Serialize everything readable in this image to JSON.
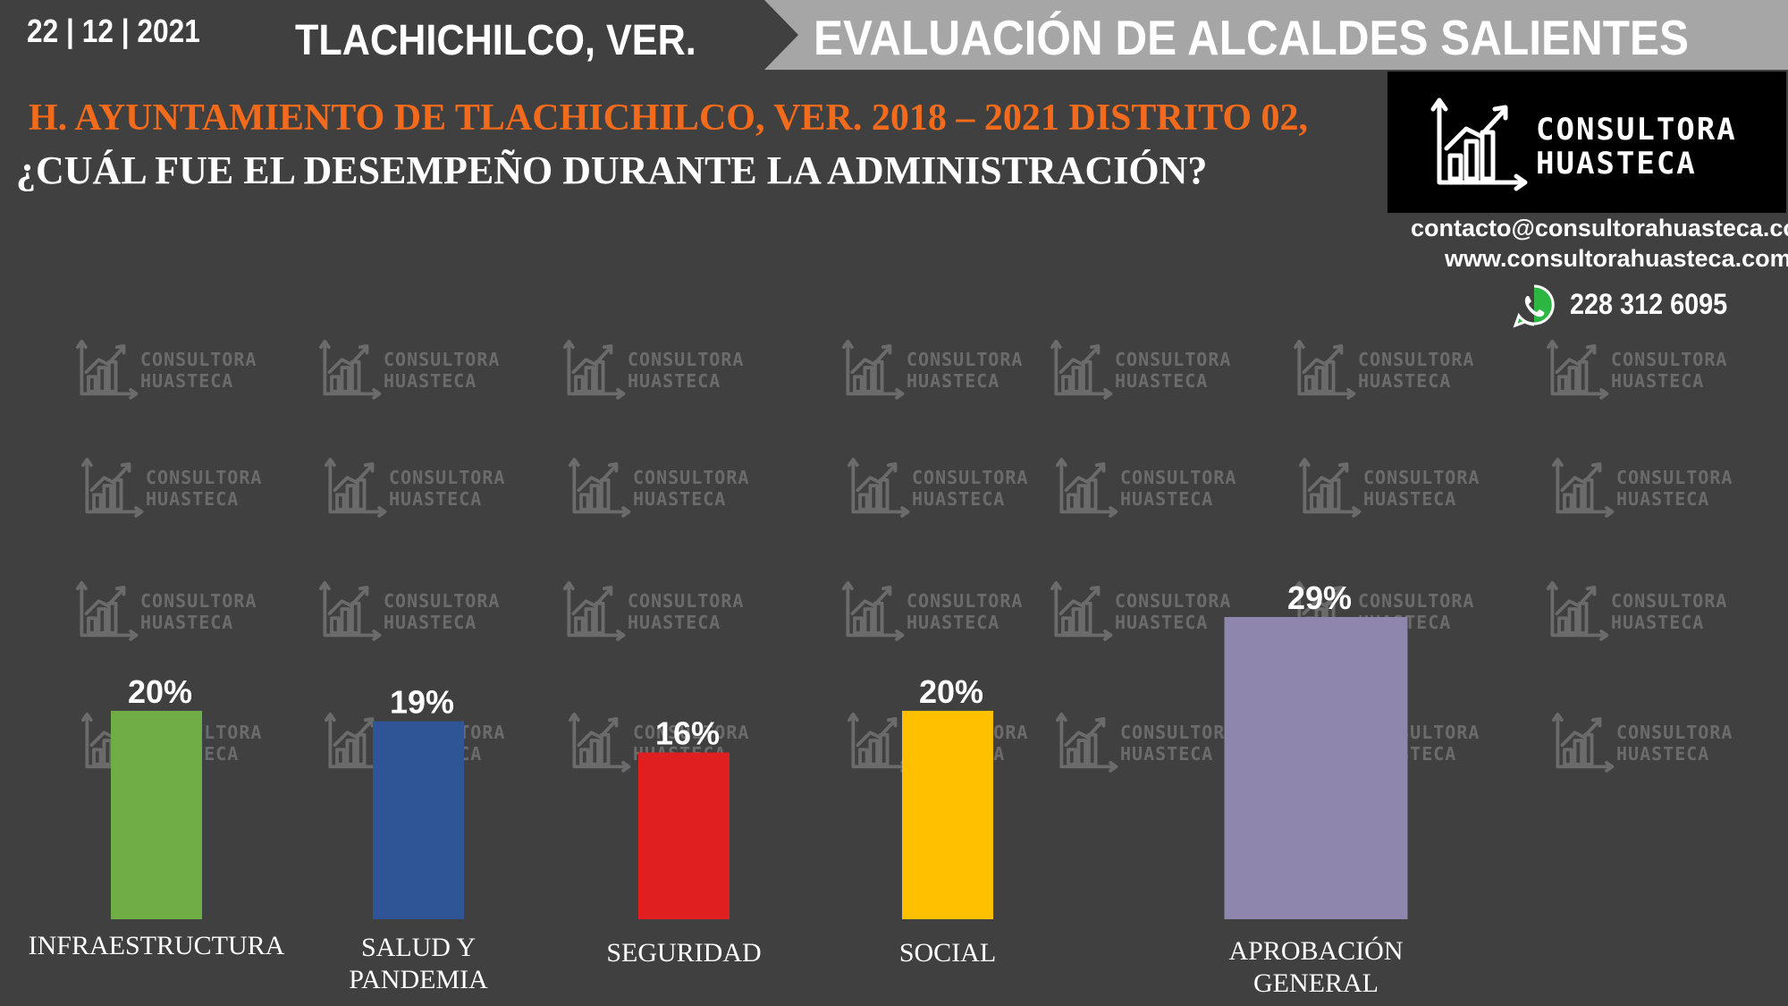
{
  "header": {
    "date": "22 | 12 | 2021",
    "place": "TLACHICHILCO, VER.",
    "banner_title": "EVALUACIÓN DE ALCALDES SALIENTES"
  },
  "subtitle": "H. AYUNTAMIENTO DE TLACHICHILCO, VER. 2018 – 2021 DISTRITO 02,",
  "question": "¿CUÁL FUE EL DESEMPEÑO DURANTE LA ADMINISTRACIÓN?",
  "logo": {
    "line1": "CONSULTORA",
    "line2": "HUASTECA"
  },
  "contact": {
    "email": "contacto@consultorahuasteca.com",
    "website": "www.consultorahuasteca.com",
    "phone": "228 312 6095",
    "phone_icon": "whatsapp-icon"
  },
  "colors": {
    "background": "#404040",
    "accent_orange": "#f26a1b",
    "banner_gray": "#a6a6a6"
  },
  "chart_data": {
    "type": "bar",
    "categories": [
      "INFRAESTRUCTURA",
      "SALUD Y PANDEMIA",
      "SEGURIDAD",
      "SOCIAL",
      "APROBACIÓN GENERAL"
    ],
    "category_lines": [
      [
        "INFRAESTRUCTURA"
      ],
      [
        "SALUD Y",
        "PANDEMIA"
      ],
      [
        "SEGURIDAD"
      ],
      [
        "SOCIAL"
      ],
      [
        "APROBACIÓN",
        "GENERAL"
      ]
    ],
    "values": [
      20,
      19,
      16,
      20,
      29
    ],
    "value_labels": [
      "20%",
      "19%",
      "16%",
      "20%",
      "29%"
    ],
    "colors": [
      "#70ad47",
      "#2f5597",
      "#e02020",
      "#ffc000",
      "#8e86ad"
    ],
    "title": "",
    "xlabel": "",
    "ylabel": "",
    "ylim": [
      0,
      29
    ],
    "grid": false,
    "legend": "none"
  }
}
